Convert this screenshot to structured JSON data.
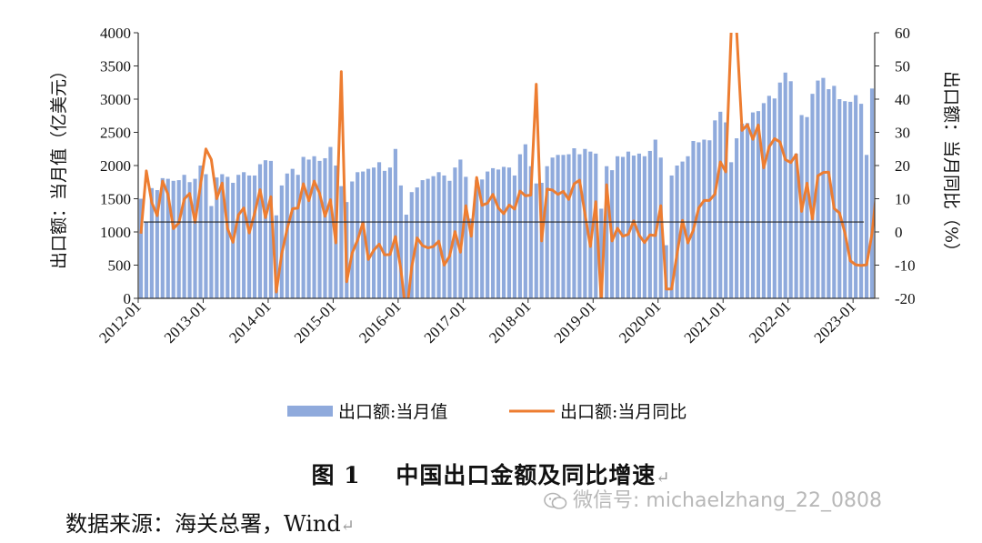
{
  "chart_data": {
    "type": "bar+line",
    "x_start": "2012-01",
    "x_tick_labels": [
      "2012-01",
      "2013-01",
      "2014-01",
      "2015-01",
      "2016-01",
      "2017-01",
      "2018-01",
      "2019-01",
      "2020-01",
      "2021-01",
      "2022-01",
      "2023-01"
    ],
    "y_left": {
      "label": "出口额：当月值（亿美元）",
      "min": 0,
      "max": 4000,
      "step": 500,
      "ticks": [
        "0",
        "500",
        "1000",
        "1500",
        "2000",
        "2500",
        "3000",
        "3500",
        "4000"
      ]
    },
    "y_right": {
      "label": "出口额：当月同比（%）",
      "min": -20,
      "max": 60,
      "step": 10,
      "ticks": [
        "-20",
        "-10",
        "0",
        "10",
        "20",
        "30",
        "40",
        "50",
        "60"
      ]
    },
    "baseline_value_right": 3,
    "series": [
      {
        "name": "出口额:当月值",
        "kind": "bar",
        "axis": "left",
        "color": "#8faadc",
        "values": [
          1500,
          1150,
          1660,
          1630,
          1810,
          1800,
          1770,
          1780,
          1860,
          1750,
          1800,
          2000,
          1870,
          1390,
          1820,
          1870,
          1830,
          1740,
          1860,
          1900,
          1850,
          1850,
          2020,
          2080,
          2070,
          1250,
          1700,
          1880,
          1950,
          1860,
          2130,
          2090,
          2140,
          2070,
          2110,
          2280,
          2000,
          1690,
          1450,
          1760,
          1900,
          1910,
          1950,
          1970,
          2050,
          1920,
          1970,
          2250,
          1700,
          1260,
          1600,
          1670,
          1780,
          1800,
          1840,
          1900,
          1850,
          1770,
          1970,
          2090,
          1830,
          1200,
          1780,
          1790,
          1910,
          1960,
          1940,
          1980,
          1970,
          1850,
          2170,
          2320,
          1990,
          1730,
          1740,
          1990,
          2120,
          2160,
          2160,
          2170,
          2260,
          2170,
          2250,
          2210,
          2180,
          1350,
          1990,
          1930,
          2140,
          2130,
          2210,
          2150,
          2180,
          2140,
          2220,
          2390,
          2120,
          800,
          1850,
          2000,
          2060,
          2140,
          2370,
          2350,
          2390,
          2380,
          2680,
          2810,
          2650,
          2050,
          2410,
          2630,
          2640,
          2800,
          2820,
          2940,
          3050,
          3010,
          3250,
          3400,
          3270,
          2180,
          2760,
          2730,
          3080,
          3280,
          3320,
          3150,
          3200,
          3000,
          2970,
          2960,
          3060,
          2930,
          2160,
          3160
        ]
      },
      {
        "name": "出口额:当月同比",
        "kind": "line",
        "axis": "right",
        "color": "#ed7d31",
        "values": [
          -0.5,
          18.4,
          8.9,
          4.9,
          15.3,
          11.3,
          1.0,
          2.7,
          9.9,
          11.6,
          2.9,
          14.1,
          25.0,
          21.8,
          10.0,
          14.7,
          1.0,
          -3.1,
          5.1,
          7.2,
          -0.3,
          5.6,
          12.7,
          4.3,
          10.6,
          -18.1,
          -6.6,
          0.9,
          7.0,
          7.2,
          14.5,
          9.4,
          15.3,
          11.6,
          4.7,
          9.7,
          -3.3,
          48.3,
          -15.0,
          -6.4,
          -2.5,
          2.8,
          -8.3,
          -5.5,
          -3.7,
          -6.9,
          -6.8,
          -1.4,
          -11.2,
          -25.4,
          -10.6,
          -1.8,
          -4.1,
          -4.8,
          -4.4,
          -2.8,
          -10.0,
          -7.3,
          0.1,
          -6.1,
          7.9,
          -1.3,
          16.4,
          8.0,
          8.7,
          11.3,
          7.2,
          5.5,
          8.1,
          6.9,
          12.3,
          10.9,
          11.1,
          44.5,
          -2.7,
          12.9,
          12.6,
          11.3,
          12.2,
          9.8,
          14.5,
          15.6,
          5.4,
          -4.4,
          9.1,
          -20.8,
          14.2,
          -2.7,
          1.1,
          -1.3,
          -0.7,
          3.3,
          -1.0,
          -3.2,
          -0.9,
          -1.1,
          7.9,
          -17.2,
          -17.2,
          -6.6,
          3.5,
          -3.3,
          0.5,
          7.2,
          9.5,
          9.5,
          11.4,
          21.1,
          18.1,
          60.6,
          60.6,
          30.6,
          32.3,
          27.9,
          32.2,
          19.3,
          25.6,
          28.1,
          27.1,
          21.8,
          20.9,
          23.3,
          6.2,
          14.7,
          3.9,
          16.9,
          17.9,
          18.0,
          7.1,
          5.7,
          -0.3,
          -8.7,
          -9.9,
          -10.1,
          -9.9,
          -0.5,
          14.8
        ]
      }
    ],
    "legend": {
      "position": "bottom",
      "items": [
        {
          "label": "出口额:当月值",
          "swatch": "bar"
        },
        {
          "label": "出口额:当月同比",
          "swatch": "line"
        }
      ]
    }
  },
  "caption": {
    "fig": "图 1",
    "title": "中国出口金额及同比增速",
    "mark": "↵"
  },
  "source": {
    "text": "数据来源：海关总署，Wind",
    "mark": "↵"
  },
  "watermark": {
    "icon": "wechat-icon",
    "text": "微信号: michaelzhang_22_0808"
  }
}
